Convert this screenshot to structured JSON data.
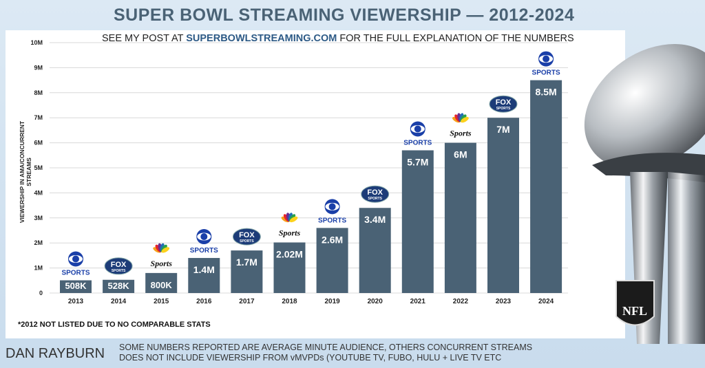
{
  "title": "SUPER BOWL STREAMING VIEWERSHIP — 2012-2024",
  "subtitle": {
    "prefix": "SEE MY POST AT ",
    "link": "SUPERBOWLSTREAMING.COM",
    "suffix": " FOR THE FULL EXPLANATION OF THE NUMBERS"
  },
  "footnote": "*2012 NOT LISTED DUE TO NO COMPARABLE STATS",
  "author": "DAN RAYBURN",
  "notes": [
    "SOME NUMBERS REPORTED ARE AVERAGE MINUTE AUDIENCE, OTHERS CONCURRENT STREAMS",
    "DOES NOT INCLUDE VIEWERSHIP FROM vMVPDs (YOUTUBE TV, FUBO, HULU + LIVE TV ETC"
  ],
  "logos": {
    "cbs": "SPORTS",
    "fox": "FOX",
    "fox_sub": "SPORTS",
    "nbc": "Sports",
    "nfl": "NFL"
  },
  "colors": {
    "bar": "#4a6275",
    "title": "#4a6275",
    "cbs": "#1a3fa8"
  },
  "chart_data": {
    "type": "bar",
    "title": "SUPER BOWL STREAMING VIEWERSHIP — 2012-2024",
    "ylabel": "VIEWERSHIP IN AMA/CONCURRENT STREAMS",
    "ylim": [
      0,
      10000000
    ],
    "yticks": [
      "0",
      "1M",
      "2M",
      "3M",
      "4M",
      "5M",
      "6M",
      "7M",
      "8M",
      "9M",
      "10M"
    ],
    "grid": true,
    "categories": [
      "2013",
      "2014",
      "2015",
      "2016",
      "2017",
      "2018",
      "2019",
      "2020",
      "2021",
      "2022",
      "2023",
      "2024"
    ],
    "values": [
      508000,
      528000,
      800000,
      1400000,
      1700000,
      2020000,
      2600000,
      3400000,
      5700000,
      6000000,
      7000000,
      8500000
    ],
    "labels": [
      "508K",
      "528K",
      "800K",
      "1.4M",
      "1.7M",
      "2.02M",
      "2.6M",
      "3.4M",
      "5.7M",
      "6M",
      "7M",
      "8.5M"
    ],
    "broadcasters": [
      "cbs",
      "fox",
      "nbc",
      "cbs",
      "fox",
      "nbc",
      "cbs",
      "fox",
      "cbs",
      "nbc",
      "fox",
      "cbs"
    ]
  }
}
